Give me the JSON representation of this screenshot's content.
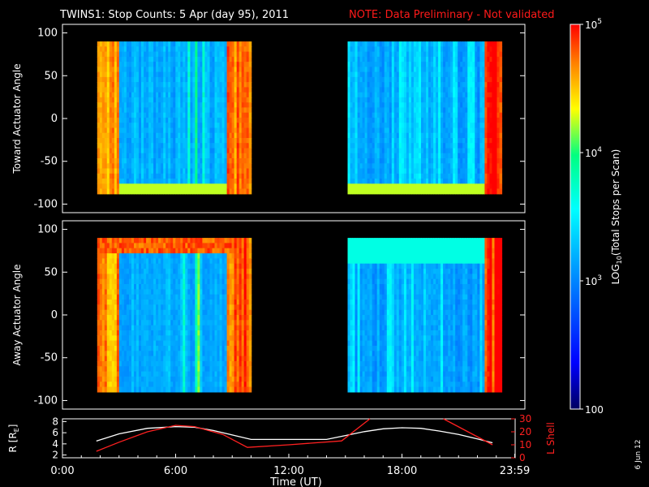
{
  "header": {
    "title": "TWINS1: Stop Counts:  5 Apr (day  95), 2011",
    "note": "NOTE: Data Preliminary - Not validated"
  },
  "side_date": "6 Jun 12",
  "colors": {
    "background": "#000000",
    "text": "#ffffff",
    "note": "#ff1a1a",
    "orbit_R": "#ffffff",
    "orbit_L": "#ff2020"
  },
  "chart_data": [
    {
      "type": "heatmap",
      "panel": "toward",
      "ylabel": "Toward Actuator Angle",
      "ylim": [
        -110,
        110
      ],
      "yticks": [
        100,
        50,
        0,
        -50,
        -100
      ],
      "xlim": [
        0,
        24
      ],
      "data_range_y": [
        -88,
        90
      ],
      "segments": [
        {
          "start_hour": 1.8,
          "end_hour": 9.8
        },
        {
          "start_hour": 14.8,
          "end_hour": 22.8
        }
      ],
      "colorscale": "log10",
      "grid": false
    },
    {
      "type": "heatmap",
      "panel": "away",
      "ylabel": "Away Actuator Angle",
      "ylim": [
        -110,
        110
      ],
      "yticks": [
        100,
        50,
        0,
        -50,
        -100
      ],
      "xlim": [
        0,
        24
      ],
      "data_range_y": [
        -90,
        90
      ],
      "segments": [
        {
          "start_hour": 1.8,
          "end_hour": 9.8
        },
        {
          "start_hour": 14.8,
          "end_hour": 22.8
        }
      ],
      "colorscale": "log10",
      "grid": false
    },
    {
      "type": "line",
      "panel": "orbit",
      "xlabel": "Time (UT)",
      "xticks": [
        "0:00",
        "6:00",
        "12:00",
        "18:00",
        "23:59"
      ],
      "xtick_hours": [
        0,
        6,
        12,
        18,
        23.98
      ],
      "xlim": [
        0,
        24
      ],
      "ylabel_left": "R [R",
      "ylabel_left_sub": "E",
      "ylabel_left_close": "]",
      "yticks_left": [
        8,
        6,
        4,
        2
      ],
      "ylim_left": [
        1.5,
        8.5
      ],
      "ylabel_right": "L Shell",
      "yticks_right": [
        30,
        20,
        10,
        0
      ],
      "ylim_right": [
        0,
        30
      ],
      "series": [
        {
          "axis": "left",
          "x": [
            1.8,
            3,
            4.5,
            6,
            7,
            8,
            9,
            10,
            12,
            14,
            15,
            16,
            17,
            18,
            19,
            20,
            21,
            22,
            22.8
          ],
          "y": [
            4.5,
            5.8,
            6.8,
            7.1,
            7.0,
            6.4,
            5.6,
            4.8,
            4.8,
            4.8,
            5.5,
            6.2,
            6.7,
            6.9,
            6.8,
            6.3,
            5.7,
            4.9,
            4.2
          ]
        },
        {
          "axis": "right",
          "x": [
            1.8,
            3,
            4.5,
            6,
            7,
            8.5,
            9.8,
            12,
            14.8,
            16.3
          ],
          "y": [
            5,
            12,
            20,
            25,
            24,
            18,
            8,
            10,
            13,
            30
          ]
        },
        {
          "axis": "right",
          "x": [
            20.2,
            21.5,
            22.8
          ],
          "y": [
            30,
            20,
            10
          ]
        }
      ]
    }
  ],
  "colorbar": {
    "label_pre": "LOG",
    "label_sub": "10",
    "label_post": "(Total Stops per Scan)",
    "ticks": [
      {
        "value": 100000,
        "base": "10",
        "exp": "5"
      },
      {
        "value": 10000,
        "base": "10",
        "exp": "4"
      },
      {
        "value": 1000,
        "base": "10",
        "exp": "3"
      },
      {
        "value": 100,
        "text": "100"
      }
    ],
    "range": [
      100,
      100000
    ],
    "stops": [
      "#000060",
      "#0000ff",
      "#0090ff",
      "#00ffff",
      "#00ff80",
      "#ffff00",
      "#ff8000",
      "#ff0000"
    ]
  }
}
